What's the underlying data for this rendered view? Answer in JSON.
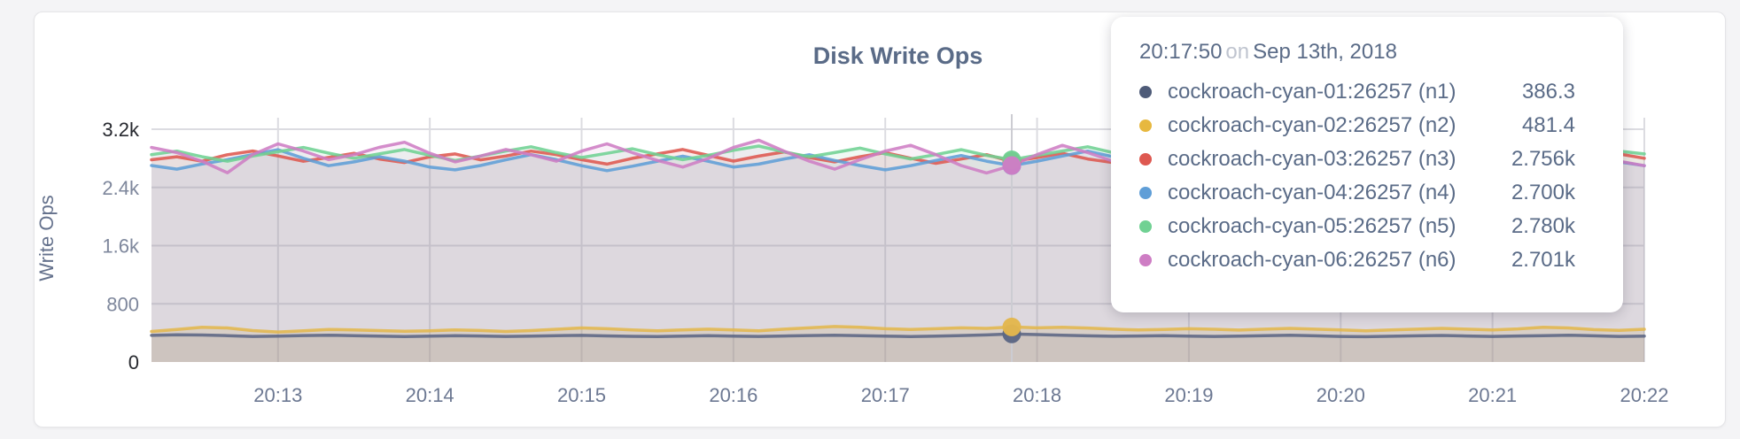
{
  "chart_data": {
    "type": "line",
    "title": "Disk Write Ops",
    "ylabel": "Write Ops",
    "x_start_time": "20:12:10",
    "x_step_seconds": 10,
    "grid": true,
    "legend_position": "tooltip-only",
    "ylim": [
      0,
      3400
    ],
    "y_ticks": [
      {
        "label": "0",
        "value": 0,
        "strong": true
      },
      {
        "label": "800",
        "value": 800,
        "strong": false
      },
      {
        "label": "1.6k",
        "value": 1600,
        "strong": false
      },
      {
        "label": "2.4k",
        "value": 2400,
        "strong": false
      },
      {
        "label": "3.2k",
        "value": 3200,
        "strong": true
      }
    ],
    "x_ticks": [
      {
        "label": "20:13",
        "offset_sec": 50
      },
      {
        "label": "20:14",
        "offset_sec": 110
      },
      {
        "label": "20:15",
        "offset_sec": 170
      },
      {
        "label": "20:16",
        "offset_sec": 230
      },
      {
        "label": "20:17",
        "offset_sec": 290
      },
      {
        "label": "20:18",
        "offset_sec": 350
      },
      {
        "label": "20:19",
        "offset_sec": 410
      },
      {
        "label": "20:20",
        "offset_sec": 470
      },
      {
        "label": "20:21",
        "offset_sec": 530
      },
      {
        "label": "20:22",
        "offset_sec": 590
      }
    ],
    "hover": {
      "index": 34,
      "time": "20:17:50",
      "date": "Sep 13th, 2018"
    },
    "series": [
      {
        "name": "cockroach-cyan-01:26257 (n1)",
        "color": "#5C6784",
        "fill_opacity": 0.14,
        "values": [
          366,
          374,
          371,
          362,
          352,
          356,
          364,
          369,
          362,
          355,
          350,
          355,
          361,
          358,
          352,
          356,
          362,
          366,
          359,
          353,
          350,
          356,
          362,
          357,
          352,
          358,
          364,
          369,
          363,
          356,
          350,
          356,
          364,
          372,
          386.3,
          377,
          368,
          360,
          354,
          358,
          363,
          357,
          352,
          356,
          361,
          367,
          360,
          352,
          348,
          354,
          360,
          365,
          358,
          352,
          358,
          363,
          369,
          360,
          352,
          356
        ]
      },
      {
        "name": "cockroach-cyan-02:26257 (n2)",
        "color": "#E3B74D",
        "fill_opacity": 0.18,
        "values": [
          420,
          446,
          478,
          468,
          432,
          412,
          428,
          448,
          441,
          432,
          422,
          430,
          442,
          433,
          420,
          432,
          450,
          468,
          458,
          440,
          430,
          442,
          452,
          441,
          430,
          452,
          470,
          488,
          477,
          458,
          448,
          458,
          470,
          462,
          481.4,
          470,
          477,
          467,
          452,
          440,
          448,
          458,
          450,
          439,
          452,
          462,
          451,
          440,
          430,
          442,
          452,
          462,
          452,
          440,
          455,
          478,
          468,
          445,
          436,
          450
        ]
      },
      {
        "name": "cockroach-cyan-03:26257 (n3)",
        "color": "#DE5850",
        "fill_opacity": 0.1,
        "values": [
          2780,
          2822,
          2761,
          2849,
          2901,
          2832,
          2760,
          2812,
          2869,
          2791,
          2742,
          2820,
          2861,
          2779,
          2831,
          2899,
          2851,
          2781,
          2721,
          2800,
          2862,
          2921,
          2841,
          2762,
          2830,
          2889,
          2811,
          2751,
          2822,
          2879,
          2801,
          2731,
          2790,
          2851,
          2756,
          2811,
          2869,
          2791,
          2741,
          2801,
          2859,
          2781,
          2821,
          2879,
          2801,
          2751,
          2812,
          2871,
          2789,
          2731,
          2799,
          2851,
          2781,
          2841,
          2891,
          2809,
          2761,
          2819,
          2861,
          2801
        ]
      },
      {
        "name": "cockroach-cyan-04:26257 (n4)",
        "color": "#5F9ED7",
        "fill_opacity": 0.1,
        "values": [
          2701,
          2651,
          2722,
          2781,
          2852,
          2919,
          2801,
          2699,
          2751,
          2822,
          2761,
          2679,
          2641,
          2701,
          2779,
          2851,
          2781,
          2699,
          2631,
          2691,
          2761,
          2829,
          2759,
          2681,
          2721,
          2791,
          2849,
          2771,
          2701,
          2641,
          2699,
          2771,
          2839,
          2761,
          2700,
          2761,
          2831,
          2899,
          2821,
          2741,
          2691,
          2751,
          2819,
          2879,
          2801,
          2721,
          2671,
          2731,
          2799,
          2861,
          2781,
          2701,
          2651,
          2711,
          2781,
          2839,
          2919,
          2831,
          2751,
          2699
        ]
      },
      {
        "name": "cockroach-cyan-05:26257 (n5)",
        "color": "#70D193",
        "fill_opacity": 0.1,
        "values": [
          2851,
          2899,
          2821,
          2761,
          2831,
          2891,
          2949,
          2871,
          2801,
          2861,
          2921,
          2841,
          2771,
          2831,
          2899,
          2959,
          2879,
          2811,
          2869,
          2931,
          2851,
          2781,
          2841,
          2911,
          2969,
          2889,
          2821,
          2879,
          2941,
          2861,
          2791,
          2851,
          2919,
          2841,
          2780,
          2841,
          2901,
          2959,
          2879,
          2811,
          2871,
          2929,
          2851,
          2791,
          2849,
          2911,
          2969,
          2891,
          2819,
          2879,
          2941,
          2859,
          2799,
          2861,
          2921,
          2839,
          2781,
          2839,
          2899,
          2861
        ]
      },
      {
        "name": "cockroach-cyan-06:26257 (n6)",
        "color": "#CE7DC4",
        "fill_opacity": 0.1,
        "values": [
          2949,
          2879,
          2761,
          2601,
          2851,
          2999,
          2901,
          2781,
          2849,
          2951,
          3021,
          2869,
          2751,
          2831,
          2921,
          2849,
          2761,
          2899,
          2999,
          2879,
          2771,
          2681,
          2799,
          2949,
          3049,
          2899,
          2761,
          2651,
          2781,
          2899,
          2979,
          2851,
          2701,
          2599,
          2701,
          2851,
          2979,
          2879,
          2761,
          2851,
          2949,
          2839,
          2721,
          2799,
          2899,
          2999,
          2869,
          2741,
          2651,
          2781,
          2899,
          3009,
          2889,
          2761,
          2679,
          2799,
          2919,
          3019,
          2761,
          2699
        ]
      }
    ]
  },
  "tooltip": {
    "time": "20:17:50",
    "on_word": "on",
    "date": "Sep 13th, 2018",
    "rows": [
      {
        "label": "cockroach-cyan-01:26257 (n1)",
        "value": "386.3",
        "color": "#4E5B78"
      },
      {
        "label": "cockroach-cyan-02:26257 (n2)",
        "value": "481.4",
        "color": "#E7B83F"
      },
      {
        "label": "cockroach-cyan-03:26257 (n3)",
        "value": "2.756k",
        "color": "#DE5850"
      },
      {
        "label": "cockroach-cyan-04:26257 (n4)",
        "value": "2.700k",
        "color": "#5F9ED7"
      },
      {
        "label": "cockroach-cyan-05:26257 (n5)",
        "value": "2.780k",
        "color": "#70D193"
      },
      {
        "label": "cockroach-cyan-06:26257 (n6)",
        "value": "2.701k",
        "color": "#CE7DC4"
      }
    ]
  },
  "ui_colors": {
    "title_text": "#5A6B87",
    "axis_label_muted": "#7E879C",
    "axis_label_strong": "#26282E",
    "x_axis_label": "#6C7892",
    "gridline": "#DCDCE1",
    "crosshair": "#CCCCD2"
  }
}
